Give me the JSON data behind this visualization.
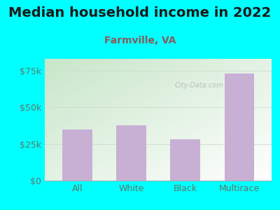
{
  "title": "Median household income in 2022",
  "subtitle": "Farmville, VA",
  "categories": [
    "All",
    "White",
    "Black",
    "Multirace"
  ],
  "values": [
    35000,
    37500,
    28000,
    73000
  ],
  "bar_color": "#c8afd4",
  "background_color": "#00FFFF",
  "chart_bg_topleft": "#c8e6c9",
  "chart_bg_bottomright": "#ffffff",
  "title_color": "#1a1a1a",
  "subtitle_color": "#8B5A5A",
  "axis_label_color": "#5a7a6a",
  "ytick_labels": [
    "$0",
    "$25k",
    "$50k",
    "$75k"
  ],
  "ytick_values": [
    0,
    25000,
    50000,
    75000
  ],
  "ylim": [
    0,
    83000
  ],
  "title_fontsize": 14,
  "subtitle_fontsize": 10,
  "tick_fontsize": 9,
  "watermark": "City-Data.com"
}
